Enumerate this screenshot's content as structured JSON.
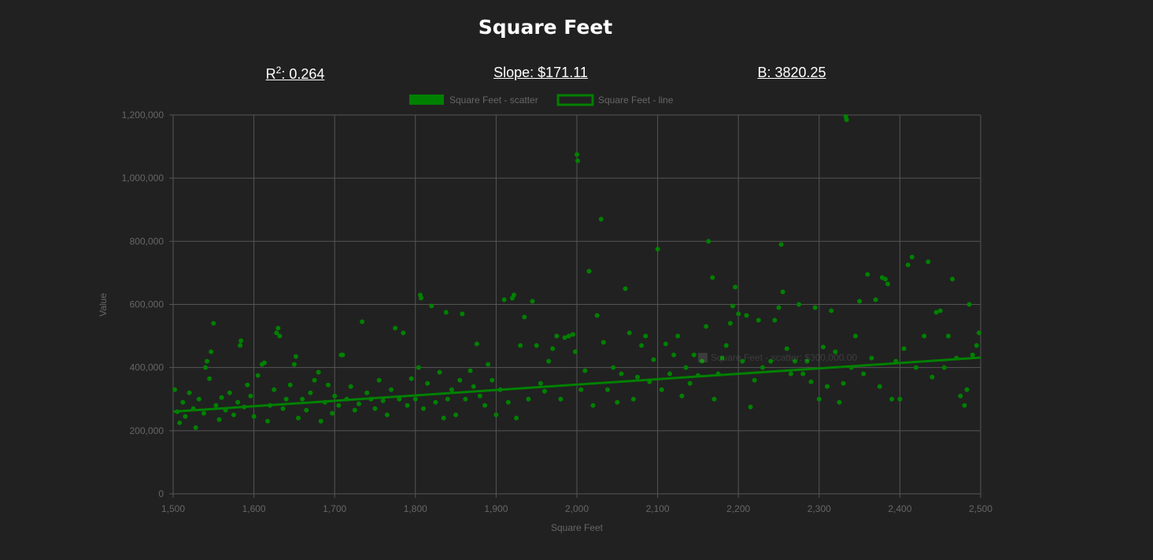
{
  "title": "Square Feet",
  "stats": {
    "r2_label": "R",
    "r2_sup": "2",
    "r2_value": ": 0.264",
    "slope": "Slope: $171.11",
    "intercept": "B: 3820.25"
  },
  "tooltip": {
    "text": "Square Feet - scatter: $300,000.00"
  },
  "colors": {
    "background": "#212121",
    "series": "#008000",
    "grid": "#555555",
    "tick_text": "#666666"
  },
  "chart_data": {
    "type": "scatter",
    "title": "Square Feet",
    "xlabel": "Square Feet",
    "ylabel": "Value",
    "xlim": [
      1500,
      2500
    ],
    "ylim": [
      0,
      1200000
    ],
    "x_ticks": [
      "1,500",
      "1,600",
      "1,700",
      "1,800",
      "1,900",
      "2,000",
      "2,100",
      "2,200",
      "2,300",
      "2,400",
      "2,500"
    ],
    "y_ticks": [
      "0",
      "200,000",
      "400,000",
      "600,000",
      "800,000",
      "1,000,000",
      "1,200,000"
    ],
    "grid": true,
    "legend_position": "top-center",
    "legend": [
      "Square Feet - scatter",
      "Square Feet - line"
    ],
    "regression": {
      "slope": 171.11,
      "intercept": 3820.25,
      "r2": 0.264,
      "x": [
        1500,
        2500
      ],
      "y": [
        260485,
        431595
      ]
    },
    "series": [
      {
        "name": "Square Feet - scatter",
        "type": "scatter",
        "points": [
          [
            1502,
            330000
          ],
          [
            1505,
            260000
          ],
          [
            1508,
            225000
          ],
          [
            1512,
            290000
          ],
          [
            1515,
            245000
          ],
          [
            1520,
            320000
          ],
          [
            1525,
            270000
          ],
          [
            1528,
            210000
          ],
          [
            1532,
            300000
          ],
          [
            1538,
            255000
          ],
          [
            1540,
            400000
          ],
          [
            1542,
            420000
          ],
          [
            1545,
            365000
          ],
          [
            1547,
            450000
          ],
          [
            1550,
            540000
          ],
          [
            1553,
            280000
          ],
          [
            1557,
            235000
          ],
          [
            1560,
            305000
          ],
          [
            1565,
            265000
          ],
          [
            1570,
            320000
          ],
          [
            1575,
            250000
          ],
          [
            1580,
            290000
          ],
          [
            1583,
            470000
          ],
          [
            1584,
            485000
          ],
          [
            1588,
            275000
          ],
          [
            1592,
            345000
          ],
          [
            1596,
            310000
          ],
          [
            1600,
            245000
          ],
          [
            1605,
            375000
          ],
          [
            1610,
            410000
          ],
          [
            1613,
            415000
          ],
          [
            1617,
            230000
          ],
          [
            1620,
            280000
          ],
          [
            1625,
            330000
          ],
          [
            1628,
            510000
          ],
          [
            1630,
            525000
          ],
          [
            1632,
            500000
          ],
          [
            1636,
            270000
          ],
          [
            1640,
            300000
          ],
          [
            1645,
            345000
          ],
          [
            1650,
            410000
          ],
          [
            1652,
            435000
          ],
          [
            1655,
            240000
          ],
          [
            1660,
            300000
          ],
          [
            1665,
            265000
          ],
          [
            1670,
            320000
          ],
          [
            1675,
            360000
          ],
          [
            1680,
            385000
          ],
          [
            1683,
            230000
          ],
          [
            1688,
            290000
          ],
          [
            1692,
            345000
          ],
          [
            1697,
            255000
          ],
          [
            1700,
            310000
          ],
          [
            1705,
            280000
          ],
          [
            1708,
            440000
          ],
          [
            1710,
            440000
          ],
          [
            1715,
            300000
          ],
          [
            1720,
            340000
          ],
          [
            1725,
            265000
          ],
          [
            1730,
            285000
          ],
          [
            1734,
            545000
          ],
          [
            1740,
            320000
          ],
          [
            1745,
            300000
          ],
          [
            1750,
            270000
          ],
          [
            1755,
            360000
          ],
          [
            1760,
            295000
          ],
          [
            1765,
            250000
          ],
          [
            1770,
            330000
          ],
          [
            1775,
            525000
          ],
          [
            1780,
            300000
          ],
          [
            1785,
            510000
          ],
          [
            1790,
            280000
          ],
          [
            1795,
            365000
          ],
          [
            1800,
            300000
          ],
          [
            1804,
            400000
          ],
          [
            1806,
            630000
          ],
          [
            1807,
            620000
          ],
          [
            1810,
            270000
          ],
          [
            1815,
            350000
          ],
          [
            1820,
            595000
          ],
          [
            1825,
            290000
          ],
          [
            1830,
            385000
          ],
          [
            1835,
            240000
          ],
          [
            1838,
            575000
          ],
          [
            1840,
            300000
          ],
          [
            1845,
            330000
          ],
          [
            1850,
            250000
          ],
          [
            1855,
            360000
          ],
          [
            1858,
            570000
          ],
          [
            1862,
            300000
          ],
          [
            1868,
            390000
          ],
          [
            1872,
            340000
          ],
          [
            1876,
            475000
          ],
          [
            1880,
            310000
          ],
          [
            1886,
            280000
          ],
          [
            1890,
            410000
          ],
          [
            1895,
            360000
          ],
          [
            1900,
            250000
          ],
          [
            1905,
            330000
          ],
          [
            1910,
            615000
          ],
          [
            1915,
            290000
          ],
          [
            1920,
            620000
          ],
          [
            1922,
            630000
          ],
          [
            1925,
            240000
          ],
          [
            1930,
            470000
          ],
          [
            1935,
            560000
          ],
          [
            1940,
            300000
          ],
          [
            1945,
            610000
          ],
          [
            1950,
            470000
          ],
          [
            1955,
            350000
          ],
          [
            1960,
            325000
          ],
          [
            1965,
            420000
          ],
          [
            1970,
            460000
          ],
          [
            1975,
            500000
          ],
          [
            1980,
            300000
          ],
          [
            1985,
            495000
          ],
          [
            1990,
            500000
          ],
          [
            1995,
            505000
          ],
          [
            1998,
            450000
          ],
          [
            2000,
            1075000
          ],
          [
            2001,
            1055000
          ],
          [
            2005,
            330000
          ],
          [
            2010,
            390000
          ],
          [
            2015,
            705000
          ],
          [
            2020,
            280000
          ],
          [
            2025,
            565000
          ],
          [
            2030,
            870000
          ],
          [
            2033,
            480000
          ],
          [
            2038,
            330000
          ],
          [
            2045,
            400000
          ],
          [
            2050,
            290000
          ],
          [
            2055,
            380000
          ],
          [
            2060,
            650000
          ],
          [
            2065,
            510000
          ],
          [
            2070,
            300000
          ],
          [
            2075,
            370000
          ],
          [
            2080,
            470000
          ],
          [
            2085,
            500000
          ],
          [
            2090,
            355000
          ],
          [
            2095,
            425000
          ],
          [
            2100,
            775000
          ],
          [
            2105,
            330000
          ],
          [
            2110,
            475000
          ],
          [
            2115,
            380000
          ],
          [
            2120,
            440000
          ],
          [
            2125,
            500000
          ],
          [
            2130,
            310000
          ],
          [
            2135,
            400000
          ],
          [
            2140,
            350000
          ],
          [
            2145,
            440000
          ],
          [
            2150,
            375000
          ],
          [
            2155,
            420000
          ],
          [
            2160,
            530000
          ],
          [
            2163,
            800000
          ],
          [
            2168,
            685000
          ],
          [
            2170,
            300000
          ],
          [
            2175,
            380000
          ],
          [
            2180,
            430000
          ],
          [
            2185,
            470000
          ],
          [
            2190,
            540000
          ],
          [
            2193,
            595000
          ],
          [
            2196,
            655000
          ],
          [
            2200,
            570000
          ],
          [
            2205,
            420000
          ],
          [
            2210,
            565000
          ],
          [
            2215,
            275000
          ],
          [
            2220,
            360000
          ],
          [
            2225,
            550000
          ],
          [
            2230,
            400000
          ],
          [
            2240,
            420000
          ],
          [
            2245,
            550000
          ],
          [
            2250,
            590000
          ],
          [
            2253,
            790000
          ],
          [
            2255,
            640000
          ],
          [
            2260,
            460000
          ],
          [
            2265,
            380000
          ],
          [
            2270,
            420000
          ],
          [
            2275,
            600000
          ],
          [
            2280,
            380000
          ],
          [
            2285,
            420000
          ],
          [
            2290,
            355000
          ],
          [
            2295,
            590000
          ],
          [
            2300,
            300000
          ],
          [
            2305,
            465000
          ],
          [
            2310,
            340000
          ],
          [
            2315,
            580000
          ],
          [
            2320,
            450000
          ],
          [
            2325,
            290000
          ],
          [
            2330,
            350000
          ],
          [
            2333,
            1195000
          ],
          [
            2334,
            1185000
          ],
          [
            2340,
            400000
          ],
          [
            2345,
            500000
          ],
          [
            2350,
            610000
          ],
          [
            2355,
            380000
          ],
          [
            2360,
            695000
          ],
          [
            2365,
            430000
          ],
          [
            2370,
            615000
          ],
          [
            2375,
            340000
          ],
          [
            2378,
            685000
          ],
          [
            2382,
            680000
          ],
          [
            2385,
            665000
          ],
          [
            2390,
            300000
          ],
          [
            2395,
            420000
          ],
          [
            2400,
            300000
          ],
          [
            2405,
            460000
          ],
          [
            2410,
            725000
          ],
          [
            2415,
            750000
          ],
          [
            2420,
            400000
          ],
          [
            2430,
            500000
          ],
          [
            2435,
            735000
          ],
          [
            2440,
            370000
          ],
          [
            2445,
            575000
          ],
          [
            2450,
            580000
          ],
          [
            2455,
            400000
          ],
          [
            2460,
            500000
          ],
          [
            2465,
            680000
          ],
          [
            2470,
            430000
          ],
          [
            2475,
            310000
          ],
          [
            2480,
            280000
          ],
          [
            2483,
            330000
          ],
          [
            2486,
            600000
          ],
          [
            2490,
            440000
          ],
          [
            2495,
            470000
          ],
          [
            2498,
            510000
          ]
        ]
      },
      {
        "name": "Square Feet - line",
        "type": "line"
      }
    ]
  }
}
